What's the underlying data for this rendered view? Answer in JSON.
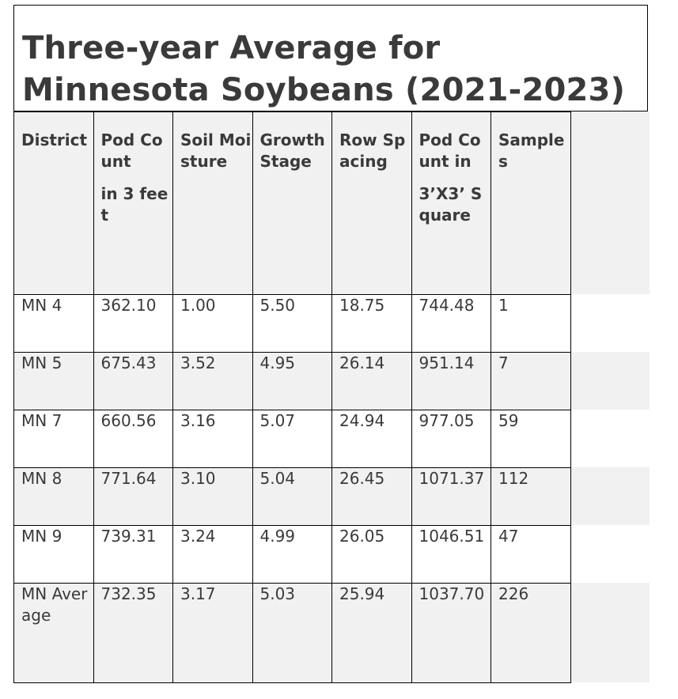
{
  "title": {
    "line1": "Three-year Average for",
    "line2": "Minnesota Soybeans (2021-2023)"
  },
  "table": {
    "headers": [
      {
        "part1": "District",
        "part2": ""
      },
      {
        "part1": "Pod Count",
        "part2": "in 3 feet"
      },
      {
        "part1": "Soil Moisture",
        "part2": ""
      },
      {
        "part1": "Growth Stage",
        "part2": ""
      },
      {
        "part1": "Row Spacing",
        "part2": ""
      },
      {
        "part1": "Pod Count in",
        "part2": "3’X3’ Square"
      },
      {
        "part1": "Samples",
        "part2": ""
      }
    ],
    "rows": [
      {
        "district": "MN 4",
        "pod_count": "362.10",
        "soil_moisture": "1.00",
        "growth_stage": "5.50",
        "row_spacing": "18.75",
        "pod_square": "744.48",
        "samples": "1"
      },
      {
        "district": "MN 5",
        "pod_count": "675.43",
        "soil_moisture": "3.52",
        "growth_stage": "4.95",
        "row_spacing": "26.14",
        "pod_square": "951.14",
        "samples": "7"
      },
      {
        "district": "MN 7",
        "pod_count": "660.56",
        "soil_moisture": "3.16",
        "growth_stage": "5.07",
        "row_spacing": "24.94",
        "pod_square": "977.05",
        "samples": "59"
      },
      {
        "district": "MN 8",
        "pod_count": "771.64",
        "soil_moisture": "3.10",
        "growth_stage": "5.04",
        "row_spacing": "26.45",
        "pod_square": "1071.37",
        "samples": "112"
      },
      {
        "district": "MN 9",
        "pod_count": "739.31",
        "soil_moisture": "3.24",
        "growth_stage": "4.99",
        "row_spacing": "26.05",
        "pod_square": "1046.51",
        "samples": "47"
      },
      {
        "district": "MN Average",
        "pod_count": "732.35",
        "soil_moisture": "3.17",
        "growth_stage": "5.03",
        "row_spacing": "25.94",
        "pod_square": "1037.70",
        "samples": "226"
      }
    ]
  },
  "colors": {
    "text": "#3a3a3a",
    "shade": "#f1f1f1",
    "border": "#000000"
  }
}
